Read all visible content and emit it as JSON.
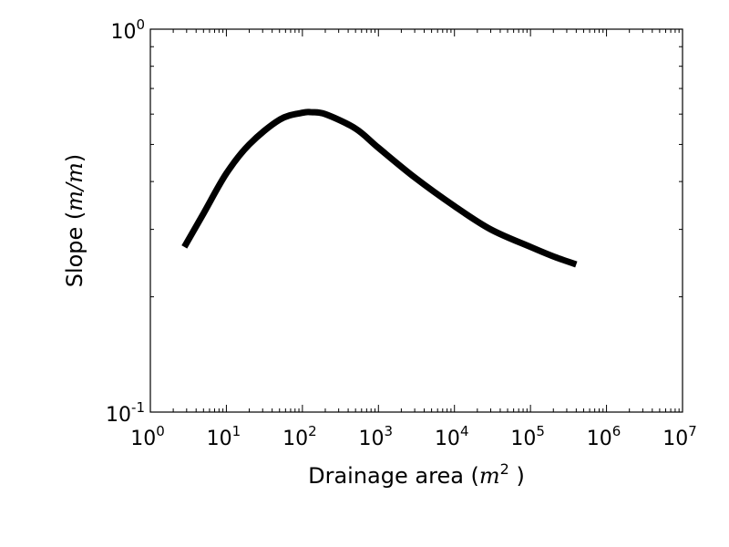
{
  "chart_data": {
    "type": "line",
    "xscale": "log",
    "yscale": "log",
    "xlim": [
      1,
      10000000
    ],
    "ylim": [
      0.1,
      1
    ],
    "xlabel": {
      "prefix": "Drainage area (",
      "math": "m",
      "power": "2",
      "suffix": " )"
    },
    "ylabel": {
      "prefix": "Slope (",
      "math": "m/m",
      "suffix": ")"
    },
    "x_ticks": [
      {
        "base": "10",
        "exp": "0"
      },
      {
        "base": "10",
        "exp": "1"
      },
      {
        "base": "10",
        "exp": "2"
      },
      {
        "base": "10",
        "exp": "3"
      },
      {
        "base": "10",
        "exp": "4"
      },
      {
        "base": "10",
        "exp": "5"
      },
      {
        "base": "10",
        "exp": "6"
      },
      {
        "base": "10",
        "exp": "7"
      }
    ],
    "y_ticks": [
      {
        "base": "10",
        "exp": "-1"
      },
      {
        "base": "10",
        "exp": "0"
      }
    ],
    "series": [
      {
        "color": "#000000",
        "x": [
          2.8,
          5,
          10,
          20,
          50,
          100,
          130,
          200,
          500,
          1000,
          3000,
          10000,
          30000,
          100000,
          200000,
          400000
        ],
        "y": [
          0.27,
          0.33,
          0.42,
          0.5,
          0.58,
          0.605,
          0.607,
          0.6,
          0.55,
          0.49,
          0.41,
          0.345,
          0.3,
          0.27,
          0.255,
          0.243
        ]
      }
    ]
  }
}
